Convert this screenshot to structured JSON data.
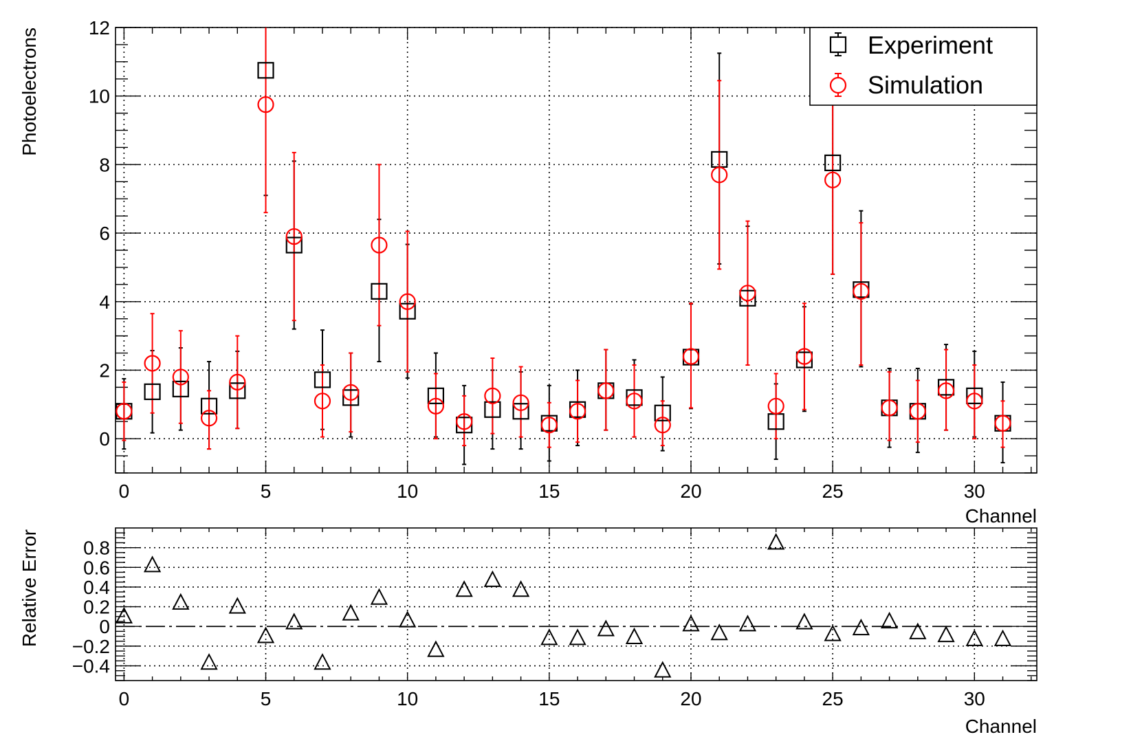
{
  "chart_data": [
    {
      "type": "scatter",
      "xlabel": "Channel",
      "ylabel": "Photoelectrons",
      "xlim": [
        -0.3,
        32.2
      ],
      "ylim": [
        -1,
        12
      ],
      "xticks": [
        0,
        5,
        10,
        15,
        20,
        25,
        30
      ],
      "yticks": [
        0,
        2,
        4,
        6,
        8,
        10,
        12
      ],
      "grid": true,
      "legend_position": "top-right",
      "x": [
        0,
        1,
        2,
        3,
        4,
        5,
        6,
        7,
        8,
        9,
        10,
        11,
        12,
        13,
        14,
        15,
        16,
        17,
        18,
        19,
        20,
        21,
        22,
        23,
        24,
        25,
        26,
        27,
        28,
        29,
        30,
        31
      ],
      "series": [
        {
          "name": "Experiment",
          "marker": "open-square",
          "color": "#000000",
          "values": [
            0.8,
            1.37,
            1.45,
            0.95,
            1.4,
            10.75,
            5.65,
            1.72,
            1.2,
            4.3,
            3.72,
            1.25,
            0.4,
            0.85,
            0.8,
            0.45,
            0.85,
            1.4,
            1.2,
            0.75,
            2.38,
            8.15,
            4.1,
            0.5,
            2.3,
            8.05,
            4.35,
            0.9,
            0.8,
            1.5,
            1.25,
            0.45
          ],
          "err_low": [
            1.1,
            1.2,
            1.2,
            1.25,
            1.1,
            3.65,
            2.45,
            1.45,
            1.15,
            2.05,
            1.95,
            1.2,
            1.15,
            1.15,
            1.1,
            1.1,
            1.05,
            1.15,
            1.15,
            1.1,
            1.5,
            3.05,
            1.95,
            1.1,
            1.5,
            3.25,
            2.25,
            1.15,
            1.2,
            1.25,
            1.2,
            1.15
          ],
          "err_high": [
            0.95,
            1.2,
            1.2,
            1.3,
            1.15,
            1.45,
            2.45,
            1.45,
            1.3,
            2.1,
            1.95,
            1.25,
            1.15,
            1.15,
            1.15,
            1.1,
            1.15,
            1.2,
            1.1,
            1.05,
            1.55,
            3.1,
            2.1,
            1.1,
            1.55,
            2.85,
            2.3,
            1.15,
            1.25,
            1.25,
            1.3,
            1.2
          ],
          "style": "black"
        },
        {
          "name": "Simulation",
          "marker": "open-circle",
          "color": "#ff0000",
          "values": [
            0.8,
            2.2,
            1.8,
            0.6,
            1.65,
            9.75,
            5.9,
            1.1,
            1.35,
            5.65,
            4.0,
            0.95,
            0.5,
            1.25,
            1.05,
            0.4,
            0.8,
            1.4,
            1.1,
            0.4,
            2.4,
            7.7,
            4.25,
            0.95,
            2.4,
            7.55,
            4.3,
            0.9,
            0.8,
            1.4,
            1.1,
            0.45
          ],
          "err_low": [
            0.85,
            1.45,
            1.35,
            0.9,
            1.35,
            3.15,
            2.45,
            1.05,
            1.15,
            2.35,
            2.05,
            0.95,
            0.7,
            1.1,
            1.0,
            0.65,
            0.9,
            1.15,
            1.05,
            0.6,
            1.5,
            2.75,
            2.1,
            0.95,
            1.55,
            2.75,
            2.15,
            0.95,
            0.9,
            1.15,
            1.1,
            0.7
          ],
          "err_high": [
            0.85,
            1.45,
            1.35,
            0.8,
            1.35,
            2.25,
            2.45,
            1.05,
            1.15,
            2.35,
            2.05,
            0.95,
            0.75,
            1.1,
            1.05,
            0.65,
            0.9,
            1.2,
            1.05,
            0.7,
            1.55,
            2.75,
            2.1,
            0.95,
            1.55,
            2.75,
            2.0,
            1.05,
            0.9,
            1.2,
            1.05,
            0.65
          ],
          "style": "red"
        }
      ]
    },
    {
      "type": "scatter",
      "xlabel": "Channel",
      "ylabel": "Relative Error",
      "xlim": [
        -0.3,
        32.2
      ],
      "ylim": [
        -0.55,
        1.0
      ],
      "xticks": [
        0,
        5,
        10,
        15,
        20,
        25,
        30
      ],
      "yticks": [
        -0.4,
        -0.2,
        0,
        0.2,
        0.4,
        0.6,
        0.8
      ],
      "ytick_labels": [
        "−0.4",
        "−0.2",
        "0",
        "0.2",
        "0.4",
        "0.6",
        "0.8"
      ],
      "grid": true,
      "reference_line": 0,
      "x": [
        0,
        1,
        2,
        3,
        4,
        5,
        6,
        7,
        8,
        9,
        10,
        11,
        12,
        13,
        14,
        15,
        16,
        17,
        18,
        19,
        20,
        21,
        22,
        23,
        24,
        25,
        26,
        27,
        28,
        29,
        30,
        31
      ],
      "series": [
        {
          "marker": "open-triangle",
          "color": "#000000",
          "values": [
            0.1,
            0.62,
            0.24,
            -0.37,
            0.2,
            -0.1,
            0.04,
            -0.37,
            0.13,
            0.29,
            0.06,
            -0.24,
            0.37,
            0.47,
            0.37,
            -0.12,
            -0.12,
            -0.03,
            -0.11,
            -0.45,
            0.02,
            -0.07,
            0.02,
            0.85,
            0.04,
            -0.08,
            -0.02,
            0.05,
            -0.06,
            -0.09,
            -0.13,
            -0.13
          ]
        }
      ]
    }
  ]
}
